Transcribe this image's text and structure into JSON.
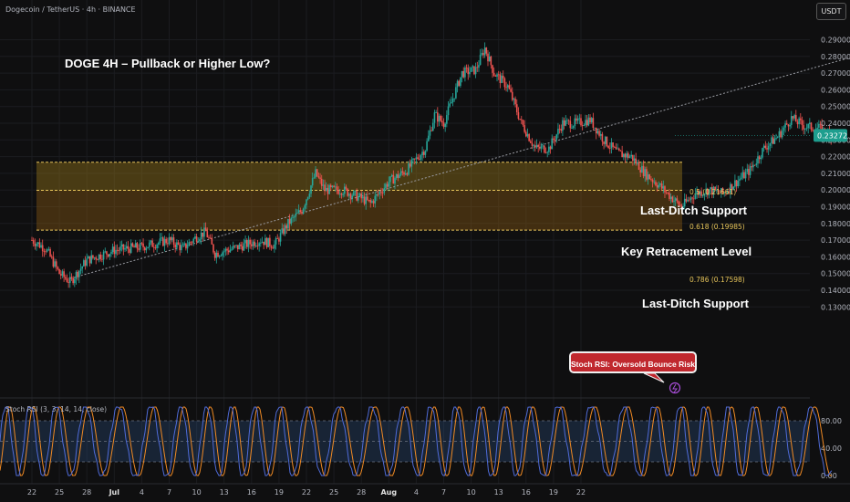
{
  "header": {
    "symbol": "Dogecoin / TetherUS · 4h · BINANCE",
    "currency_button": "USDT"
  },
  "annotations": {
    "title": "DOGE 4H – Pullback or Higher Low?",
    "zone_upper": "Last-Ditch Support",
    "zone_middle": "Key Retracement Level",
    "zone_lower": "Last-Ditch Support",
    "stoch_callout": "Stoch RSI: Oversold Bounce Risk"
  },
  "fib_levels": [
    {
      "label": "0.5 (0.21661)",
      "value": 0.21661
    },
    {
      "label": "0.618 (0.19985)",
      "value": 0.19985
    },
    {
      "label": "0.786 (0.17598)",
      "value": 0.17598
    }
  ],
  "colors": {
    "up": "#26a69a",
    "down": "#ef5350",
    "zone_fill": "#9a7a1a",
    "fib_line": "#e6c45a",
    "price_tag": "#1e9e8e",
    "stoch_k": "#4f6bd8",
    "stoch_d": "#f08a24",
    "callout": "#c0282e"
  },
  "stoch_rsi": {
    "label": "Stoch RSI (3, 3, 14, 14, close)",
    "ticks": [
      "80.00",
      "40.00",
      "0.00"
    ]
  },
  "chart_data": {
    "type": "candlestick",
    "title": "DOGE 4H – Pullback or Higher Low?",
    "x_ticks": [
      "22",
      "25",
      "28",
      "Jul",
      "4",
      "7",
      "10",
      "13",
      "16",
      "19",
      "22",
      "25",
      "28",
      "Aug",
      "4",
      "7",
      "10",
      "13",
      "16",
      "19",
      "22"
    ],
    "y_ticks": [
      "0.29000",
      "0.28000",
      "0.27000",
      "0.26000",
      "0.25000",
      "0.24000",
      "0.23000",
      "0.22000",
      "0.21000",
      "0.20000",
      "0.19000",
      "0.18000",
      "0.17000",
      "0.16000",
      "0.15000",
      "0.14000",
      "0.13000"
    ],
    "ylim": [
      0.125,
      0.295
    ],
    "last_price": "0.23272",
    "last_price_value": 0.23272,
    "path": [
      [
        0,
        0.17
      ],
      [
        1.5,
        0.165
      ],
      [
        3,
        0.15
      ],
      [
        4.2,
        0.145
      ],
      [
        6,
        0.158
      ],
      [
        9,
        0.164
      ],
      [
        12,
        0.166
      ],
      [
        15,
        0.17
      ],
      [
        16.5,
        0.165
      ],
      [
        18,
        0.172
      ],
      [
        19,
        0.175
      ],
      [
        20,
        0.162
      ],
      [
        22,
        0.165
      ],
      [
        25,
        0.17
      ],
      [
        26.5,
        0.167
      ],
      [
        28,
        0.18
      ],
      [
        29.5,
        0.188
      ],
      [
        31,
        0.21
      ],
      [
        32,
        0.2
      ],
      [
        34,
        0.2
      ],
      [
        36,
        0.195
      ],
      [
        37,
        0.192
      ],
      [
        39,
        0.205
      ],
      [
        41,
        0.212
      ],
      [
        43,
        0.225
      ],
      [
        44,
        0.245
      ],
      [
        45,
        0.24
      ],
      [
        47,
        0.27
      ],
      [
        48.5,
        0.272
      ],
      [
        49.5,
        0.285
      ],
      [
        50.5,
        0.27
      ],
      [
        52,
        0.262
      ],
      [
        53.5,
        0.24
      ],
      [
        55,
        0.225
      ],
      [
        56.5,
        0.225
      ],
      [
        58,
        0.24
      ],
      [
        59.5,
        0.24
      ],
      [
        61,
        0.242
      ],
      [
        62.5,
        0.23
      ],
      [
        64,
        0.222
      ],
      [
        65.5,
        0.22
      ],
      [
        67,
        0.21
      ],
      [
        68.5,
        0.203
      ],
      [
        70,
        0.195
      ],
      [
        71,
        0.19
      ],
      [
        72.5,
        0.198
      ],
      [
        74,
        0.2
      ],
      [
        75.5,
        0.198
      ],
      [
        77,
        0.205
      ],
      [
        78.5,
        0.212
      ],
      [
        80,
        0.225
      ],
      [
        81.5,
        0.232
      ],
      [
        83,
        0.243
      ],
      [
        84.5,
        0.238
      ],
      [
        86,
        0.237
      ],
      [
        87.5,
        0.232
      ]
    ],
    "series": [
      {
        "name": "",
        "type": "trendline",
        "x": [
          4.2,
          95
        ],
        "y": [
          0.147,
          0.288
        ]
      }
    ]
  }
}
